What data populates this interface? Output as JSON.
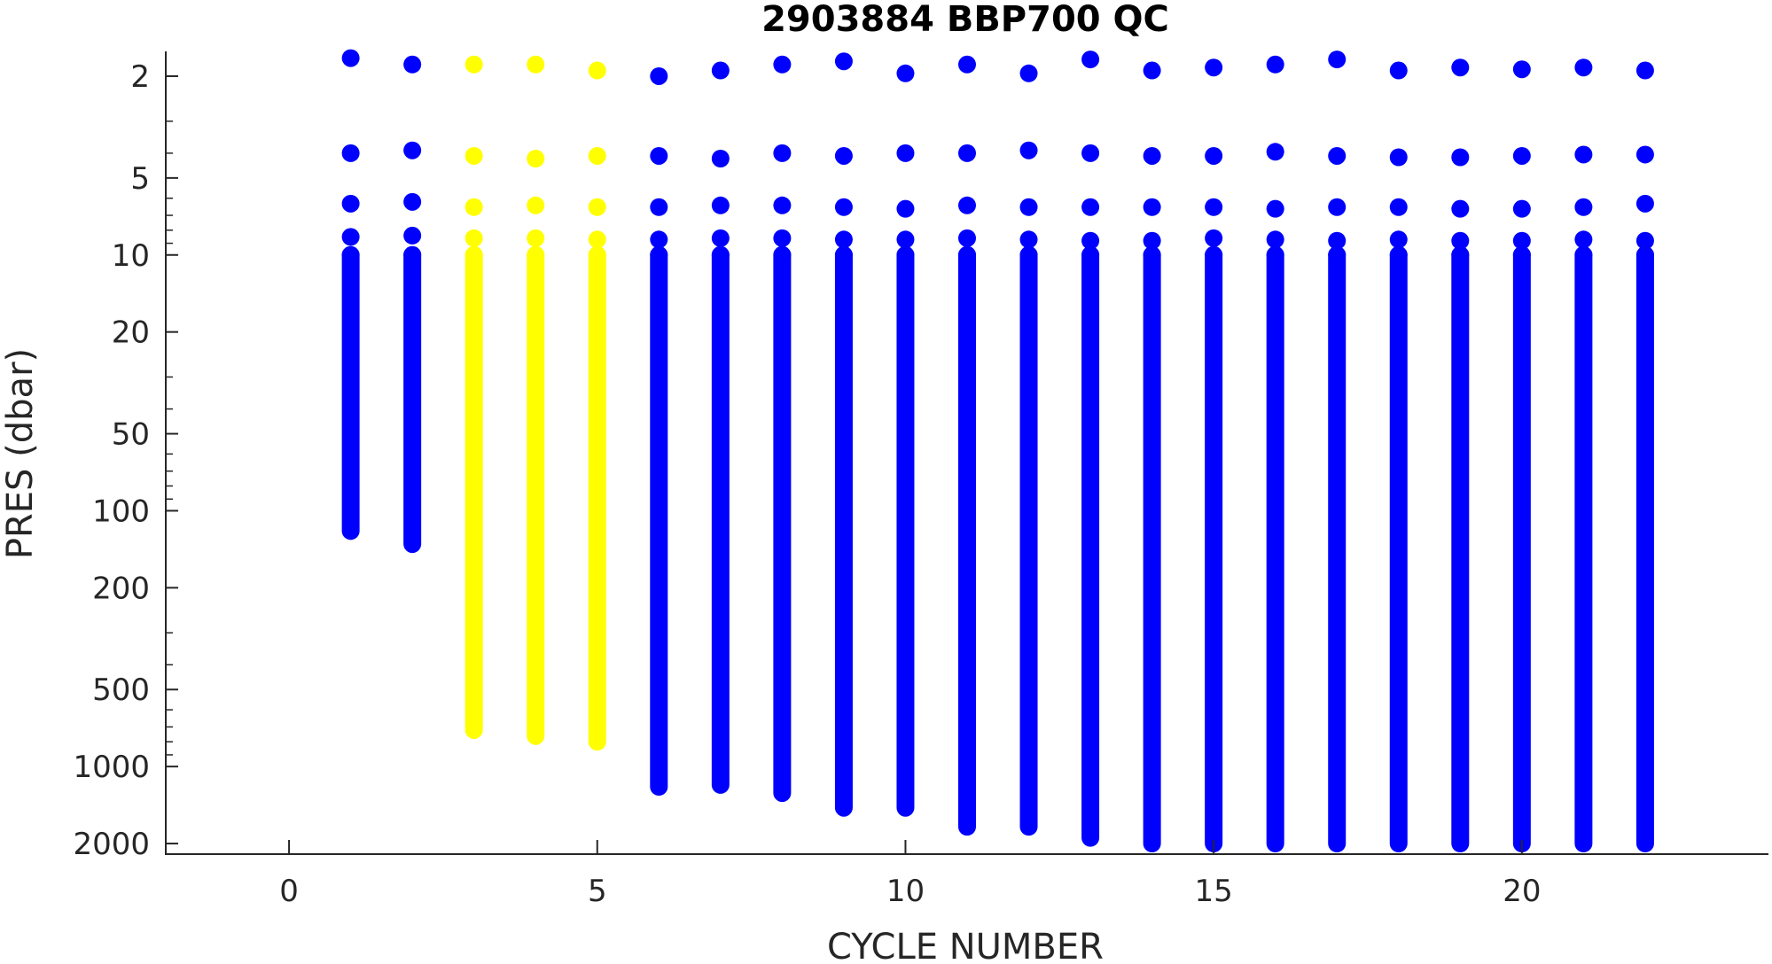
{
  "chart_data": {
    "type": "scatter",
    "title": "2903884 BBP700 QC",
    "xlabel": "CYCLE NUMBER",
    "ylabel": "PRES (dbar)",
    "xlim": [
      -2,
      24
    ],
    "ylim": [
      1.6,
      2200
    ],
    "y_scale": "log",
    "y_reversed": true,
    "x_ticks": [
      0,
      5,
      10,
      15,
      20
    ],
    "x_tick_labels": [
      "0",
      "5",
      "10",
      "15",
      "20"
    ],
    "y_ticks": [
      2,
      5,
      10,
      20,
      50,
      100,
      200,
      500,
      1000,
      2000
    ],
    "y_tick_labels": [
      "2",
      "5",
      "10",
      "20",
      "50",
      "100",
      "200",
      "500",
      "1000",
      "2000"
    ],
    "grid": false,
    "legend": "none",
    "colors": {
      "qc_1": "#0000ff",
      "qc_3": "#ffff00",
      "axis": "#262626"
    },
    "profiles": [
      {
        "cycle": 1,
        "qc_color": "qc_1",
        "top_pres": 1.7,
        "shallow_pres": [
          4.0,
          6.3,
          8.5,
          10.0
        ],
        "max_pres": 120
      },
      {
        "cycle": 2,
        "qc_color": "qc_1",
        "top_pres": 1.8,
        "shallow_pres": [
          3.9,
          6.2,
          8.4,
          10.0
        ],
        "max_pres": 135
      },
      {
        "cycle": 3,
        "qc_color": "qc_3",
        "top_pres": 1.8,
        "shallow_pres": [
          4.1,
          6.5,
          8.6,
          10.0
        ],
        "max_pres": 720
      },
      {
        "cycle": 4,
        "qc_color": "qc_3",
        "top_pres": 1.8,
        "shallow_pres": [
          4.2,
          6.4,
          8.6,
          10.0
        ],
        "max_pres": 760
      },
      {
        "cycle": 5,
        "qc_color": "qc_3",
        "top_pres": 1.9,
        "shallow_pres": [
          4.1,
          6.5,
          8.7,
          10.0
        ],
        "max_pres": 800
      },
      {
        "cycle": 6,
        "qc_color": "qc_1",
        "top_pres": 2.0,
        "shallow_pres": [
          4.1,
          6.5,
          8.7,
          10.0
        ],
        "max_pres": 1200
      },
      {
        "cycle": 7,
        "qc_color": "qc_1",
        "top_pres": 1.9,
        "shallow_pres": [
          4.2,
          6.4,
          8.6,
          10.0
        ],
        "max_pres": 1180
      },
      {
        "cycle": 8,
        "qc_color": "qc_1",
        "top_pres": 1.8,
        "shallow_pres": [
          4.0,
          6.4,
          8.6,
          10.0
        ],
        "max_pres": 1270
      },
      {
        "cycle": 9,
        "qc_color": "qc_1",
        "top_pres": 1.75,
        "shallow_pres": [
          4.1,
          6.5,
          8.7,
          10.0
        ],
        "max_pres": 1450
      },
      {
        "cycle": 10,
        "qc_color": "qc_1",
        "top_pres": 1.95,
        "shallow_pres": [
          4.0,
          6.6,
          8.7,
          10.0
        ],
        "max_pres": 1450
      },
      {
        "cycle": 11,
        "qc_color": "qc_1",
        "top_pres": 1.8,
        "shallow_pres": [
          4.0,
          6.4,
          8.6,
          10.0
        ],
        "max_pres": 1720
      },
      {
        "cycle": 12,
        "qc_color": "qc_1",
        "top_pres": 1.95,
        "shallow_pres": [
          3.9,
          6.5,
          8.7,
          10.0
        ],
        "max_pres": 1720
      },
      {
        "cycle": 13,
        "qc_color": "qc_1",
        "top_pres": 1.72,
        "shallow_pres": [
          4.0,
          6.5,
          8.8,
          10.0
        ],
        "max_pres": 1900
      },
      {
        "cycle": 14,
        "qc_color": "qc_1",
        "top_pres": 1.9,
        "shallow_pres": [
          4.1,
          6.5,
          8.8,
          10.0
        ],
        "max_pres": 2000
      },
      {
        "cycle": 15,
        "qc_color": "qc_1",
        "top_pres": 1.85,
        "shallow_pres": [
          4.1,
          6.5,
          8.6,
          10.0
        ],
        "max_pres": 2000
      },
      {
        "cycle": 16,
        "qc_color": "qc_1",
        "top_pres": 1.8,
        "shallow_pres": [
          3.95,
          6.6,
          8.7,
          10.0
        ],
        "max_pres": 2000
      },
      {
        "cycle": 17,
        "qc_color": "qc_1",
        "top_pres": 1.72,
        "shallow_pres": [
          4.1,
          6.5,
          8.8,
          10.0
        ],
        "max_pres": 2000
      },
      {
        "cycle": 18,
        "qc_color": "qc_1",
        "top_pres": 1.9,
        "shallow_pres": [
          4.15,
          6.5,
          8.7,
          10.0
        ],
        "max_pres": 2000
      },
      {
        "cycle": 19,
        "qc_color": "qc_1",
        "top_pres": 1.85,
        "shallow_pres": [
          4.15,
          6.6,
          8.8,
          10.0
        ],
        "max_pres": 2000
      },
      {
        "cycle": 20,
        "qc_color": "qc_1",
        "top_pres": 1.88,
        "shallow_pres": [
          4.1,
          6.6,
          8.8,
          10.0
        ],
        "max_pres": 2000
      },
      {
        "cycle": 21,
        "qc_color": "qc_1",
        "top_pres": 1.85,
        "shallow_pres": [
          4.05,
          6.5,
          8.7,
          10.0
        ],
        "max_pres": 2000
      },
      {
        "cycle": 22,
        "qc_color": "qc_1",
        "top_pres": 1.9,
        "shallow_pres": [
          4.05,
          6.3,
          8.8,
          10.0
        ],
        "max_pres": 2000
      }
    ]
  }
}
